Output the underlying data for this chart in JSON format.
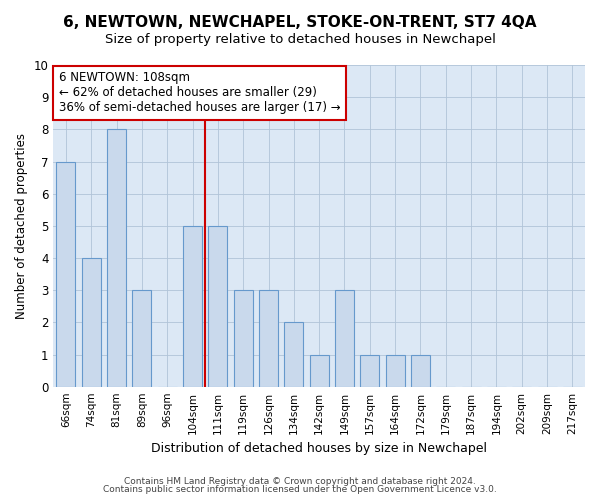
{
  "title": "6, NEWTOWN, NEWCHAPEL, STOKE-ON-TRENT, ST7 4QA",
  "subtitle": "Size of property relative to detached houses in Newchapel",
  "xlabel": "Distribution of detached houses by size in Newchapel",
  "ylabel": "Number of detached properties",
  "categories": [
    "66sqm",
    "74sqm",
    "81sqm",
    "89sqm",
    "96sqm",
    "104sqm",
    "111sqm",
    "119sqm",
    "126sqm",
    "134sqm",
    "142sqm",
    "149sqm",
    "157sqm",
    "164sqm",
    "172sqm",
    "179sqm",
    "187sqm",
    "194sqm",
    "202sqm",
    "209sqm",
    "217sqm"
  ],
  "values": [
    7,
    4,
    8,
    3,
    0,
    5,
    5,
    3,
    3,
    2,
    1,
    3,
    1,
    1,
    1,
    0,
    0,
    0,
    0,
    0,
    0
  ],
  "bar_color": "#c9d9ec",
  "bar_edge_color": "#6699cc",
  "highlight_index": 5,
  "highlight_line_color": "#cc0000",
  "annotation_text": "6 NEWTOWN: 108sqm\n← 62% of detached houses are smaller (29)\n36% of semi-detached houses are larger (17) →",
  "annotation_box_color": "#ffffff",
  "annotation_box_edge_color": "#cc0000",
  "ylim": [
    0,
    10
  ],
  "yticks": [
    0,
    1,
    2,
    3,
    4,
    5,
    6,
    7,
    8,
    9,
    10
  ],
  "footer1": "Contains HM Land Registry data © Crown copyright and database right 2024.",
  "footer2": "Contains public sector information licensed under the Open Government Licence v3.0.",
  "plot_bg_color": "#dce8f5",
  "fig_bg_color": "#ffffff",
  "bar_width": 0.75,
  "grid_color": "#b0c4d8",
  "annotation_fontsize": 8.5,
  "title_fontsize": 11,
  "subtitle_fontsize": 9.5,
  "xlabel_fontsize": 9,
  "ylabel_fontsize": 8.5
}
